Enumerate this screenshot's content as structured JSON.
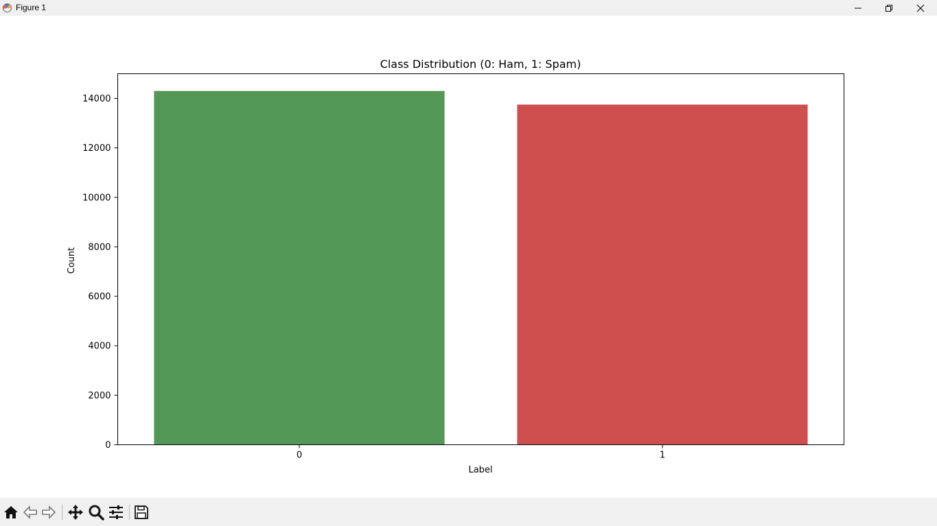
{
  "window": {
    "title": "Figure 1"
  },
  "icons": {
    "app": "matplotlib-figure-icon",
    "minimize": "minimize-icon",
    "maximize": "restore-icon",
    "close": "close-icon"
  },
  "toolbar": {
    "tools": [
      "home-icon",
      "back-arrow-icon",
      "forward-arrow-icon",
      "pan-icon",
      "zoom-icon",
      "configure-subplots-icon",
      "save-icon"
    ]
  },
  "chart_data": {
    "type": "bar",
    "title": "Class Distribution (0: Ham, 1: Spam)",
    "xlabel": "Label",
    "ylabel": "Count",
    "categories": [
      "0",
      "1"
    ],
    "values": [
      14300,
      13750
    ],
    "colors": [
      "#529755",
      "#cf4f4f"
    ],
    "ylim": [
      0,
      15000
    ],
    "yticks": [
      0,
      2000,
      4000,
      6000,
      8000,
      10000,
      12000,
      14000
    ],
    "grid": false
  }
}
